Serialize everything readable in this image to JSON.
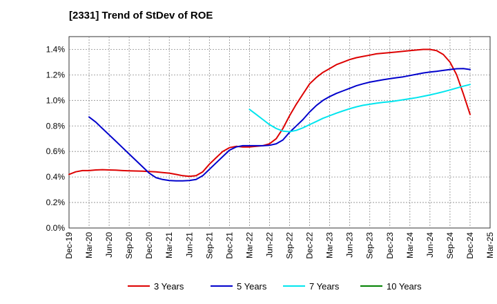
{
  "chart_data": {
    "type": "line",
    "title": "[2331]  Trend of StDev of ROE",
    "xlabel": "",
    "ylabel": "",
    "ylim": [
      0,
      1.5
    ],
    "y_ticks": [
      "0.0%",
      "0.2%",
      "0.4%",
      "0.6%",
      "0.8%",
      "1.0%",
      "1.2%",
      "1.4%"
    ],
    "x_ticks": [
      "Dec-19",
      "Mar-20",
      "Jun-20",
      "Sep-20",
      "Dec-20",
      "Mar-21",
      "Jun-21",
      "Sep-21",
      "Dec-21",
      "Mar-22",
      "Jun-22",
      "Sep-22",
      "Dec-22",
      "Mar-23",
      "Jun-23",
      "Sep-23",
      "Dec-23",
      "Mar-24",
      "Jun-24",
      "Sep-24",
      "Dec-24",
      "Mar-25"
    ],
    "grid": true,
    "legend_position": "bottom",
    "series": [
      {
        "name": "3 Years",
        "color": "#dd0000",
        "x": [
          "Dec-19",
          "Jan-20",
          "Feb-20",
          "Mar-20",
          "Apr-20",
          "May-20",
          "Jun-20",
          "Jul-20",
          "Aug-20",
          "Sep-20",
          "Oct-20",
          "Nov-20",
          "Dec-20",
          "Jan-21",
          "Feb-21",
          "Mar-21",
          "Apr-21",
          "May-21",
          "Jun-21",
          "Jul-21",
          "Aug-21",
          "Sep-21",
          "Oct-21",
          "Nov-21",
          "Dec-21",
          "Jan-22",
          "Feb-22",
          "Mar-22",
          "Apr-22",
          "May-22",
          "Jun-22",
          "Jul-22",
          "Aug-22",
          "Sep-22",
          "Oct-22",
          "Nov-22",
          "Dec-22",
          "Jan-23",
          "Feb-23",
          "Mar-23",
          "Apr-23",
          "May-23",
          "Jun-23",
          "Jul-23",
          "Aug-23",
          "Sep-23",
          "Oct-23",
          "Nov-23",
          "Dec-23",
          "Jan-24",
          "Feb-24",
          "Mar-24",
          "Apr-24",
          "May-24",
          "Jun-24",
          "Jul-24",
          "Aug-24",
          "Sep-24",
          "Oct-24",
          "Nov-24",
          "Dec-24"
        ],
        "values": [
          0.42,
          0.44,
          0.45,
          0.45,
          0.455,
          0.457,
          0.455,
          0.453,
          0.45,
          0.448,
          0.447,
          0.445,
          0.443,
          0.44,
          0.435,
          0.43,
          0.42,
          0.41,
          0.405,
          0.41,
          0.44,
          0.5,
          0.55,
          0.6,
          0.63,
          0.64,
          0.635,
          0.635,
          0.64,
          0.645,
          0.66,
          0.7,
          0.78,
          0.88,
          0.97,
          1.05,
          1.13,
          1.18,
          1.22,
          1.25,
          1.28,
          1.3,
          1.32,
          1.335,
          1.345,
          1.355,
          1.365,
          1.37,
          1.375,
          1.38,
          1.385,
          1.39,
          1.395,
          1.4,
          1.4,
          1.39,
          1.36,
          1.3,
          1.2,
          1.05,
          0.89
        ]
      },
      {
        "name": "5 Years",
        "color": "#0000cc",
        "x": [
          "Mar-20",
          "Apr-20",
          "May-20",
          "Jun-20",
          "Jul-20",
          "Aug-20",
          "Sep-20",
          "Oct-20",
          "Nov-20",
          "Dec-20",
          "Jan-21",
          "Feb-21",
          "Mar-21",
          "Apr-21",
          "May-21",
          "Jun-21",
          "Jul-21",
          "Aug-21",
          "Sep-21",
          "Oct-21",
          "Nov-21",
          "Dec-21",
          "Jan-22",
          "Feb-22",
          "Mar-22",
          "Apr-22",
          "May-22",
          "Jun-22",
          "Jul-22",
          "Aug-22",
          "Sep-22",
          "Oct-22",
          "Nov-22",
          "Dec-22",
          "Jan-23",
          "Feb-23",
          "Mar-23",
          "Apr-23",
          "May-23",
          "Jun-23",
          "Jul-23",
          "Aug-23",
          "Sep-23",
          "Oct-23",
          "Nov-23",
          "Dec-23",
          "Jan-24",
          "Feb-24",
          "Mar-24",
          "Apr-24",
          "May-24",
          "Jun-24",
          "Jul-24",
          "Aug-24",
          "Sep-24",
          "Oct-24",
          "Nov-24",
          "Dec-24"
        ],
        "values": [
          0.87,
          0.83,
          0.78,
          0.73,
          0.68,
          0.63,
          0.58,
          0.53,
          0.48,
          0.43,
          0.395,
          0.38,
          0.372,
          0.37,
          0.37,
          0.372,
          0.38,
          0.41,
          0.46,
          0.51,
          0.56,
          0.61,
          0.635,
          0.645,
          0.645,
          0.645,
          0.645,
          0.648,
          0.66,
          0.69,
          0.75,
          0.8,
          0.85,
          0.91,
          0.96,
          1.0,
          1.03,
          1.055,
          1.075,
          1.095,
          1.115,
          1.13,
          1.143,
          1.153,
          1.162,
          1.17,
          1.178,
          1.185,
          1.195,
          1.205,
          1.215,
          1.222,
          1.228,
          1.235,
          1.242,
          1.248,
          1.25,
          1.242
        ]
      },
      {
        "name": "7 Years",
        "color": "#00e5ee",
        "x": [
          "Mar-22",
          "Apr-22",
          "May-22",
          "Jun-22",
          "Jul-22",
          "Aug-22",
          "Sep-22",
          "Oct-22",
          "Nov-22",
          "Dec-22",
          "Jan-23",
          "Feb-23",
          "Mar-23",
          "Apr-23",
          "May-23",
          "Jun-23",
          "Jul-23",
          "Aug-23",
          "Sep-23",
          "Oct-23",
          "Nov-23",
          "Dec-23",
          "Jan-24",
          "Feb-24",
          "Mar-24",
          "Apr-24",
          "May-24",
          "Jun-24",
          "Jul-24",
          "Aug-24",
          "Sep-24",
          "Oct-24",
          "Nov-24",
          "Dec-24"
        ],
        "values": [
          0.93,
          0.89,
          0.85,
          0.81,
          0.78,
          0.76,
          0.755,
          0.765,
          0.785,
          0.81,
          0.835,
          0.86,
          0.88,
          0.9,
          0.918,
          0.935,
          0.95,
          0.962,
          0.97,
          0.978,
          0.985,
          0.99,
          0.997,
          1.005,
          1.013,
          1.022,
          1.032,
          1.043,
          1.055,
          1.068,
          1.082,
          1.097,
          1.112,
          1.125
        ]
      },
      {
        "name": "10 Years",
        "color": "#008000",
        "x": [],
        "values": []
      }
    ]
  }
}
